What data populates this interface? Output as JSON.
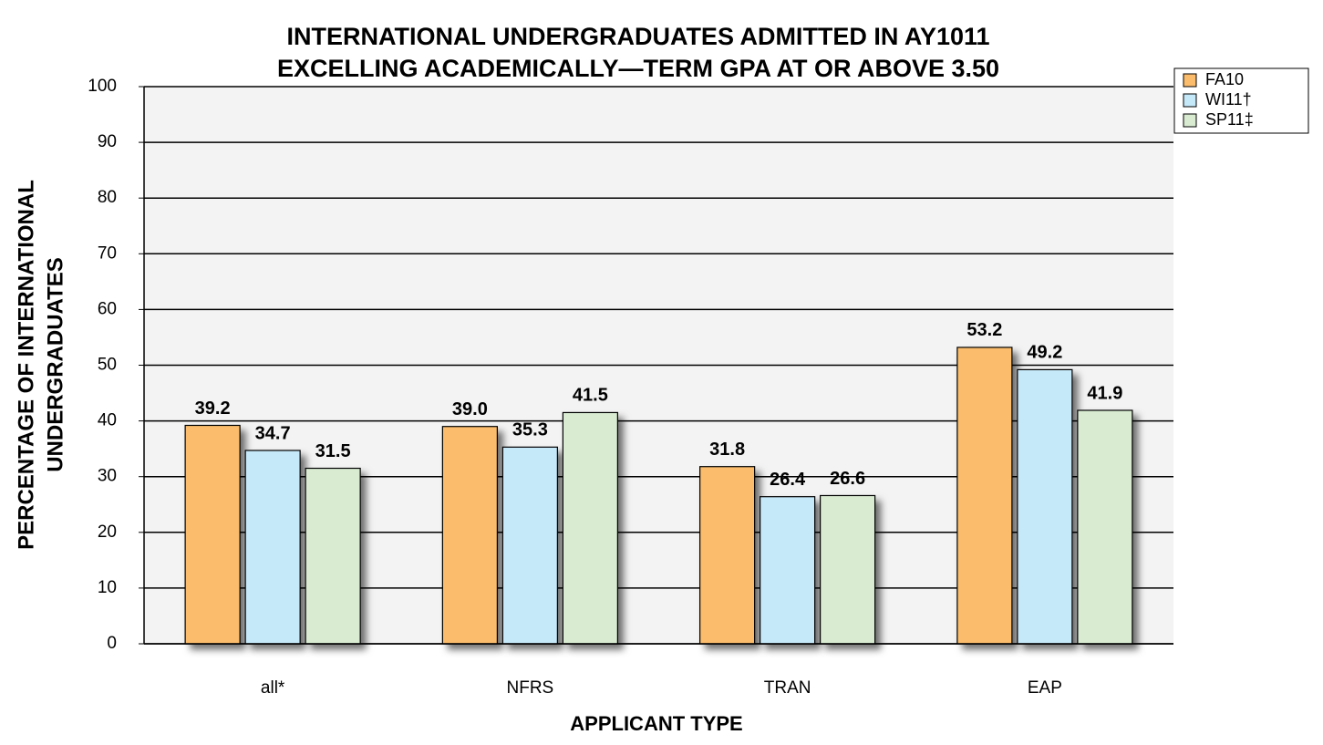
{
  "chart_data": {
    "type": "bar",
    "title": [
      "INTERNATIONAL UNDERGRADUATES ADMITTED IN AY1011",
      "EXCELLING ACADEMICALLY—TERM GPA AT OR ABOVE 3.50"
    ],
    "x_label": "APPLICANT TYPE",
    "y_label": [
      "PERCENTAGE OF INTERNATIONAL",
      "UNDERGRADUATES"
    ],
    "categories": [
      "all*",
      "NFRS",
      "TRAN",
      "EAP"
    ],
    "series": [
      {
        "name": "FA10",
        "color": "#fbbd6c",
        "values": [
          39.2,
          39.0,
          31.8,
          53.2
        ],
        "value_labels": [
          "39.2",
          "39.0",
          "31.8",
          "53.2"
        ]
      },
      {
        "name": "WI11†",
        "color": "#c6e9f9",
        "values": [
          34.7,
          35.3,
          26.4,
          49.2
        ],
        "value_labels": [
          "34.7",
          "35.3",
          "26.4",
          "49.2"
        ]
      },
      {
        "name": "SP11‡",
        "color": "#d9ecd2",
        "values": [
          31.5,
          41.5,
          26.6,
          41.9
        ],
        "value_labels": [
          "31.5",
          "41.5",
          "26.6",
          "41.9"
        ]
      }
    ],
    "ylim": [
      0,
      100
    ],
    "yticks": [
      0,
      10,
      20,
      30,
      40,
      50,
      60,
      70,
      80,
      90,
      100
    ],
    "grid": true,
    "legend": "right"
  }
}
